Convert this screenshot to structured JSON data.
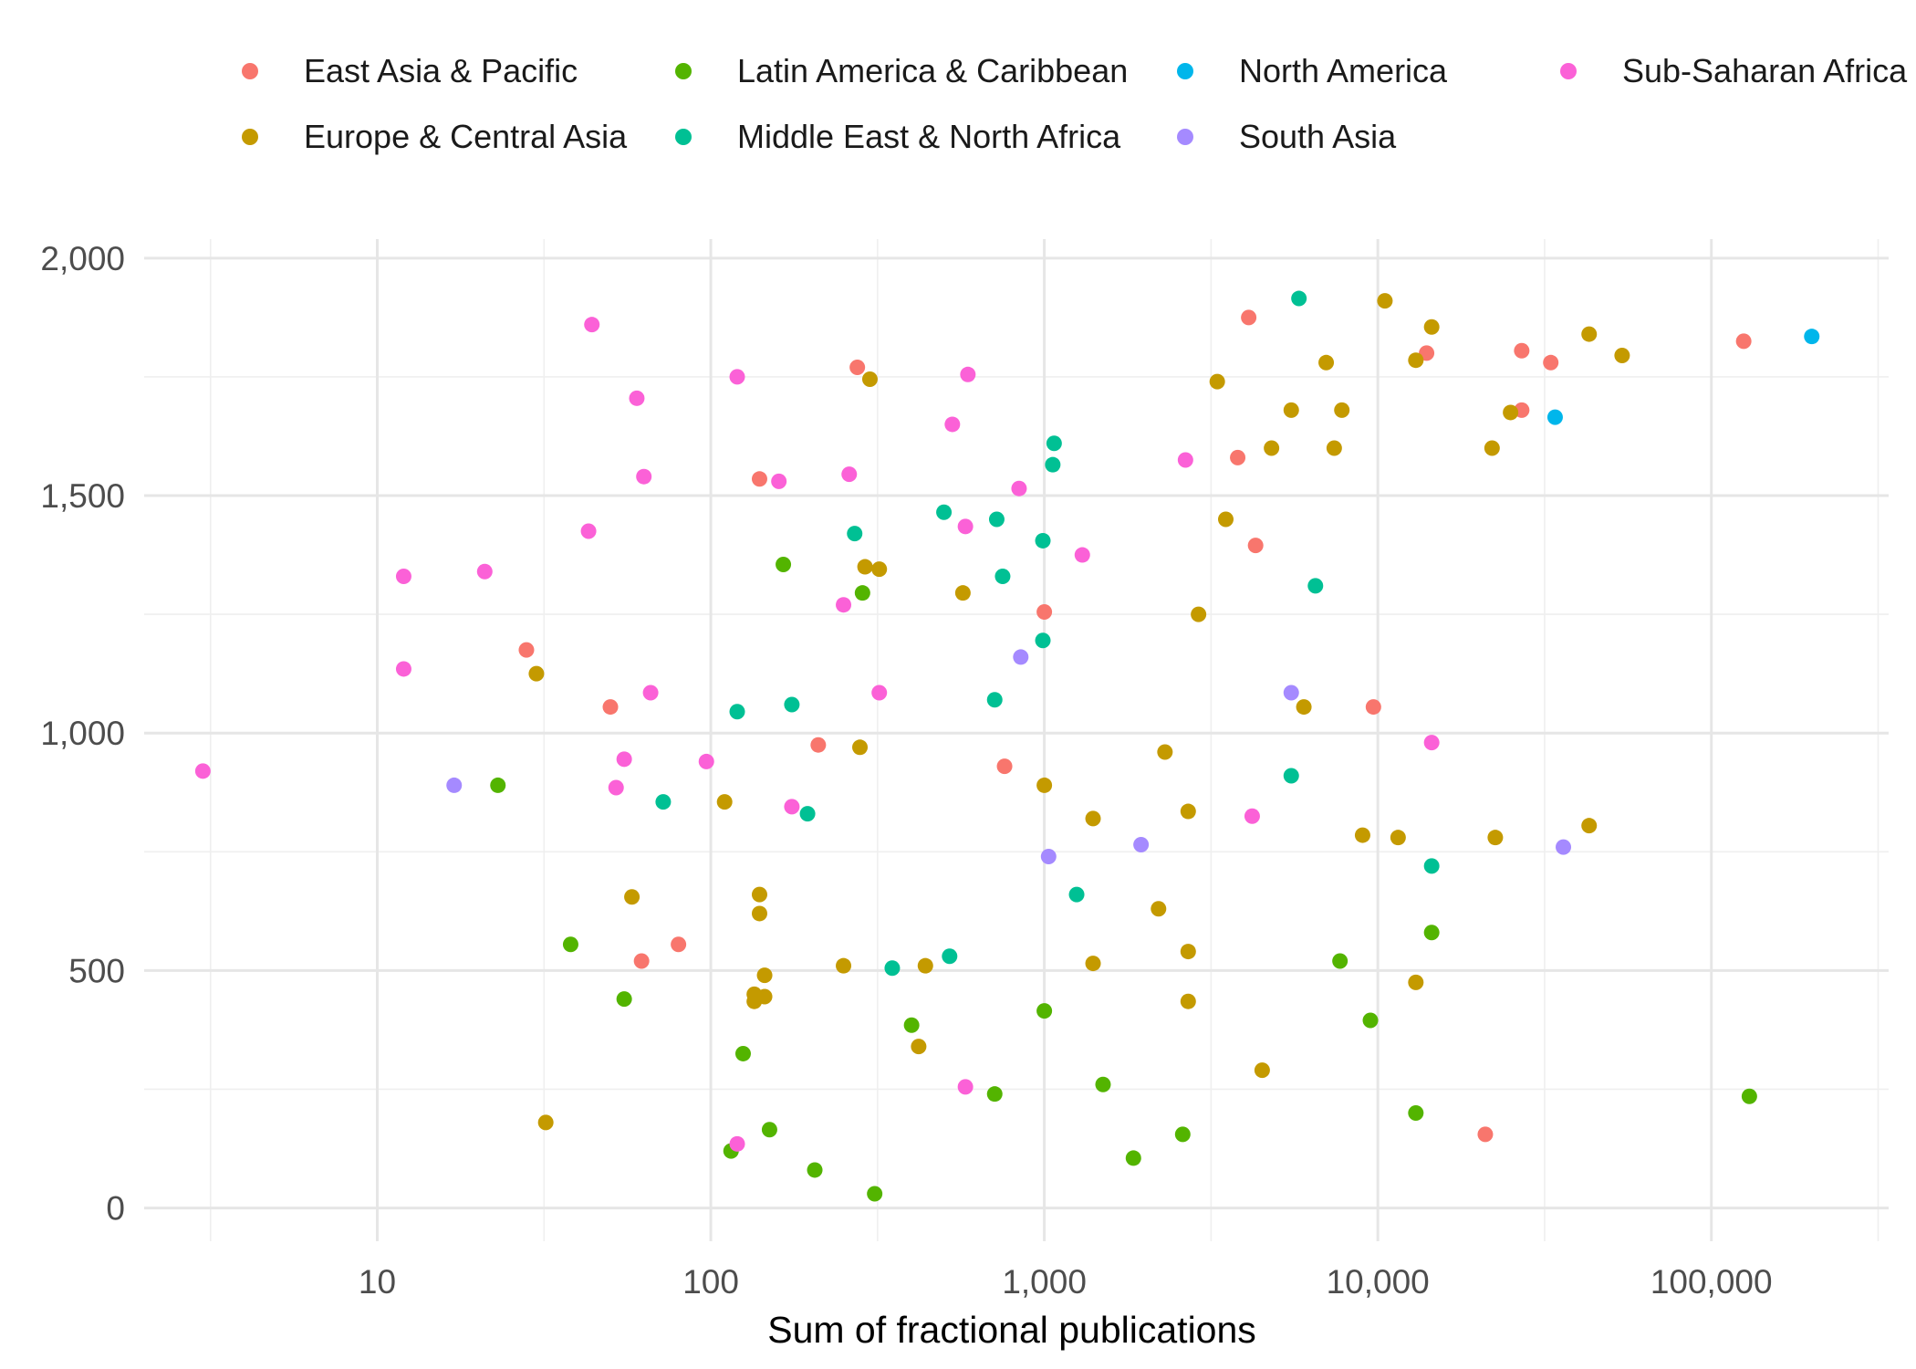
{
  "chart_data": {
    "type": "scatter",
    "title": "",
    "xlabel": "Sum of fractional publications",
    "ylabel": "",
    "xscale": "log",
    "xlim": [
      2,
      340000
    ],
    "ylim": [
      -70,
      2040
    ],
    "x_ticks": [
      10,
      100,
      1000,
      10000,
      100000
    ],
    "x_tick_labels": [
      "10",
      "100",
      "1,000",
      "10,000",
      "100,000"
    ],
    "y_ticks": [
      0,
      500,
      1000,
      1500,
      2000
    ],
    "y_tick_labels": [
      "0",
      "500",
      "1,000",
      "1,500",
      "2,000"
    ],
    "grid": true,
    "legend_position": "top",
    "series": [
      {
        "name": "East Asia & Pacific",
        "color": "#F8766D",
        "points": [
          [
            4100,
            1875
          ],
          [
            14000,
            1800
          ],
          [
            27000,
            1805
          ],
          [
            33000,
            1780
          ],
          [
            125000,
            1825
          ],
          [
            27000,
            1680
          ],
          [
            3800,
            1580
          ],
          [
            4300,
            1395
          ],
          [
            275,
            1770
          ],
          [
            140,
            1535
          ],
          [
            1000,
            1255
          ],
          [
            28,
            1175
          ],
          [
            50,
            1055
          ],
          [
            9700,
            1055
          ],
          [
            210,
            975
          ],
          [
            760,
            930
          ],
          [
            62,
            520
          ],
          [
            80,
            555
          ],
          [
            21000,
            155
          ]
        ]
      },
      {
        "name": "Europe & Central Asia",
        "color": "#C49A00",
        "points": [
          [
            10500,
            1910
          ],
          [
            14500,
            1855
          ],
          [
            7000,
            1780
          ],
          [
            13000,
            1785
          ],
          [
            43000,
            1840
          ],
          [
            54000,
            1795
          ],
          [
            300,
            1745
          ],
          [
            3300,
            1740
          ],
          [
            5500,
            1680
          ],
          [
            7800,
            1680
          ],
          [
            25000,
            1675
          ],
          [
            4800,
            1600
          ],
          [
            7400,
            1600
          ],
          [
            22000,
            1600
          ],
          [
            3500,
            1450
          ],
          [
            290,
            1350
          ],
          [
            320,
            1345
          ],
          [
            570,
            1295
          ],
          [
            2900,
            1250
          ],
          [
            30,
            1125
          ],
          [
            6000,
            1055
          ],
          [
            280,
            970
          ],
          [
            2300,
            960
          ],
          [
            110,
            855
          ],
          [
            1000,
            890
          ],
          [
            1400,
            820
          ],
          [
            2700,
            835
          ],
          [
            9000,
            785
          ],
          [
            11500,
            780
          ],
          [
            22500,
            780
          ],
          [
            43000,
            805
          ],
          [
            58,
            655
          ],
          [
            140,
            660
          ],
          [
            140,
            620
          ],
          [
            2200,
            630
          ],
          [
            2700,
            540
          ],
          [
            145,
            490
          ],
          [
            250,
            510
          ],
          [
            440,
            510
          ],
          [
            1400,
            515
          ],
          [
            135,
            450
          ],
          [
            145,
            445
          ],
          [
            135,
            435
          ],
          [
            2700,
            435
          ],
          [
            13000,
            475
          ],
          [
            420,
            340
          ],
          [
            4500,
            290
          ],
          [
            32,
            180
          ]
        ]
      },
      {
        "name": "Latin America & Caribbean",
        "color": "#53B400",
        "points": [
          [
            165,
            1355
          ],
          [
            285,
            1295
          ],
          [
            23,
            890
          ],
          [
            38,
            555
          ],
          [
            55,
            440
          ],
          [
            400,
            385
          ],
          [
            1000,
            415
          ],
          [
            125,
            325
          ],
          [
            7700,
            520
          ],
          [
            14500,
            580
          ],
          [
            9500,
            395
          ],
          [
            150,
            165
          ],
          [
            710,
            240
          ],
          [
            1500,
            260
          ],
          [
            13000,
            200
          ],
          [
            130000,
            235
          ],
          [
            115,
            120
          ],
          [
            205,
            80
          ],
          [
            1850,
            105
          ],
          [
            2600,
            155
          ],
          [
            310,
            30
          ]
        ]
      },
      {
        "name": "Middle East & North Africa",
        "color": "#00C094",
        "points": [
          [
            5800,
            1915
          ],
          [
            1070,
            1610
          ],
          [
            1060,
            1565
          ],
          [
            500,
            1465
          ],
          [
            720,
            1450
          ],
          [
            270,
            1420
          ],
          [
            990,
            1405
          ],
          [
            750,
            1330
          ],
          [
            6500,
            1310
          ],
          [
            990,
            1195
          ],
          [
            120,
            1045
          ],
          [
            175,
            1060
          ],
          [
            710,
            1070
          ],
          [
            5500,
            910
          ],
          [
            72,
            855
          ],
          [
            195,
            830
          ],
          [
            1250,
            660
          ],
          [
            14500,
            720
          ],
          [
            350,
            505
          ],
          [
            520,
            530
          ]
        ]
      },
      {
        "name": "North America",
        "color": "#00B6EB",
        "points": [
          [
            200000,
            1835
          ],
          [
            34000,
            1665
          ]
        ]
      },
      {
        "name": "South Asia",
        "color": "#A58AFF",
        "points": [
          [
            17,
            890
          ],
          [
            850,
            1160
          ],
          [
            5500,
            1085
          ],
          [
            1030,
            740
          ],
          [
            1950,
            765
          ],
          [
            36000,
            760
          ]
        ]
      },
      {
        "name": "Sub-Saharan Africa",
        "color": "#FB61D7",
        "points": [
          [
            44,
            1860
          ],
          [
            120,
            1750
          ],
          [
            60,
            1705
          ],
          [
            590,
            1755
          ],
          [
            530,
            1650
          ],
          [
            63,
            1540
          ],
          [
            160,
            1530
          ],
          [
            260,
            1545
          ],
          [
            2650,
            1575
          ],
          [
            840,
            1515
          ],
          [
            43,
            1425
          ],
          [
            12,
            1330
          ],
          [
            21,
            1340
          ],
          [
            580,
            1435
          ],
          [
            1300,
            1375
          ],
          [
            250,
            1270
          ],
          [
            12,
            1135
          ],
          [
            66,
            1085
          ],
          [
            320,
            1085
          ],
          [
            3,
            920
          ],
          [
            55,
            945
          ],
          [
            97,
            940
          ],
          [
            52,
            885
          ],
          [
            175,
            845
          ],
          [
            14500,
            980
          ],
          [
            4200,
            825
          ],
          [
            580,
            255
          ],
          [
            120,
            135
          ]
        ]
      }
    ]
  }
}
